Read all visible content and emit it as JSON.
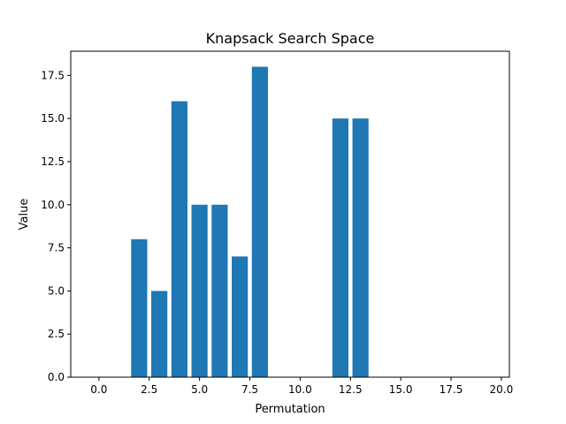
{
  "chart_data": {
    "type": "bar",
    "title": "Knapsack Search Space",
    "xlabel": "Permutation",
    "ylabel": "Value",
    "x": [
      0,
      1,
      2,
      3,
      4,
      5,
      6,
      7,
      8,
      9,
      10,
      11,
      12,
      13,
      14,
      15,
      16,
      17,
      18,
      19
    ],
    "values": [
      0,
      0,
      8,
      5,
      16,
      10,
      10,
      7,
      18,
      0,
      0,
      0,
      15,
      15,
      0,
      0,
      0,
      0,
      0,
      0
    ],
    "bar_color": "#1f77b4",
    "xlim": [
      -1.4,
      20.4
    ],
    "ylim": [
      0,
      18.9
    ],
    "xticks": [
      0.0,
      2.5,
      5.0,
      7.5,
      10.0,
      12.5,
      15.0,
      17.5,
      20.0
    ],
    "xtick_labels": [
      "0.0",
      "2.5",
      "5.0",
      "7.5",
      "10.0",
      "12.5",
      "15.0",
      "17.5",
      "20.0"
    ],
    "yticks": [
      0.0,
      2.5,
      5.0,
      7.5,
      10.0,
      12.5,
      15.0,
      17.5
    ],
    "ytick_labels": [
      "0.0",
      "2.5",
      "5.0",
      "7.5",
      "10.0",
      "12.5",
      "15.0",
      "17.5"
    ],
    "grid": false,
    "legend": "none"
  }
}
